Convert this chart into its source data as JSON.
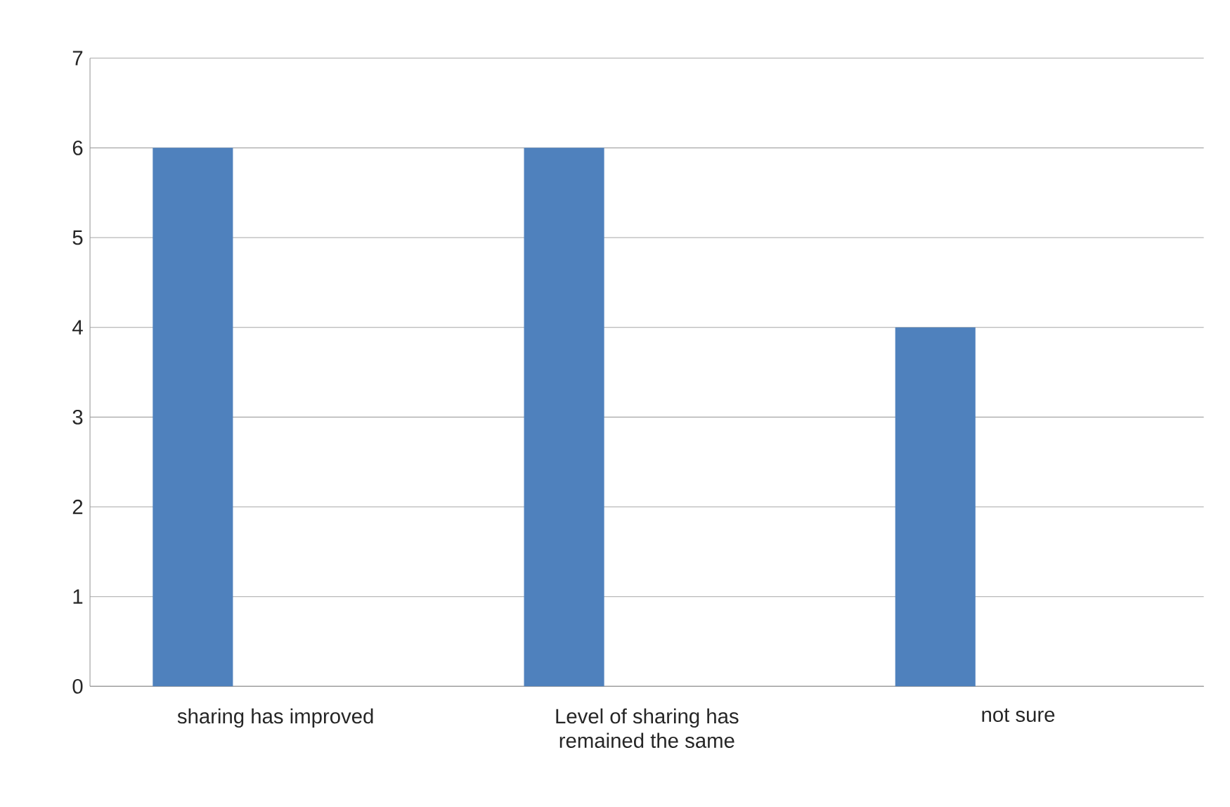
{
  "chart_data": {
    "type": "bar",
    "categories": [
      "sharing has improved",
      "Level of sharing has remained the same",
      "not sure"
    ],
    "values": [
      6,
      6,
      4
    ],
    "color": "#4f81bd",
    "ylim": [
      0,
      7
    ],
    "yticks": [
      0,
      1,
      2,
      3,
      4,
      5,
      6,
      7
    ],
    "grid": "y"
  }
}
